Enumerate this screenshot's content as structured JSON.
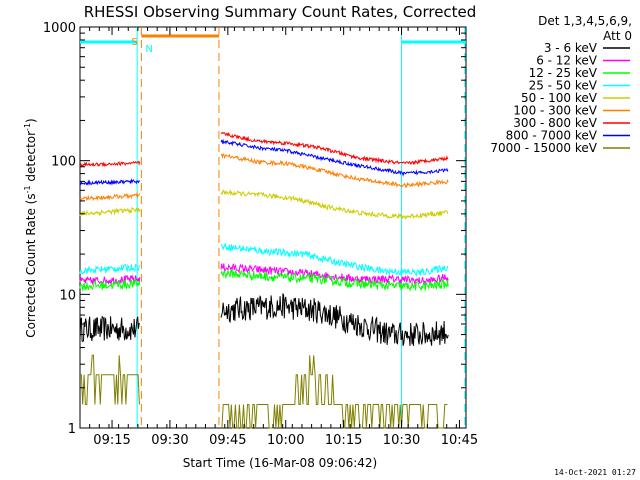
{
  "chart_data": {
    "type": "line",
    "title": "RHESSI Observing Summary Count Rates, Corrected",
    "xlabel": "Start Time (16-Mar-08 09:06:42)",
    "ylabel_main": "Corrected Count Rate (s",
    "ylabel_sup1": "-1",
    "ylabel_mid": " detector",
    "ylabel_sup2": "-1",
    "ylabel_end": ")",
    "x_range_min": [
      0,
      100
    ],
    "y_scale": "log",
    "ylim": [
      1,
      1000
    ],
    "x_ticks": [
      "09:15",
      "09:30",
      "09:45",
      "10:00",
      "10:15",
      "10:30",
      "10:45"
    ],
    "x_tick_values": [
      8.3,
      23.3,
      38.3,
      53.3,
      68.3,
      83.3,
      98.3
    ],
    "y_ticks": [
      "1",
      "10",
      "100",
      "1000"
    ],
    "y_tick_values": [
      1,
      10,
      100,
      1000
    ],
    "legend_header": [
      "Det 1,3,4,5,6,9,",
      "Att 0"
    ],
    "footer_date": "14-Oct-2021 01:27",
    "gaps_min": [
      [
        15.6,
        36.5
      ],
      [
        95.5,
        100
      ]
    ],
    "series": [
      {
        "name": "3 - 6 keV",
        "color": "#000000",
        "pts": [
          [
            0,
            5.5
          ],
          [
            15.5,
            5.5
          ],
          [
            36.5,
            7.6
          ],
          [
            52,
            8.2
          ],
          [
            62,
            7.5
          ],
          [
            72,
            6.0
          ],
          [
            80,
            5.0
          ],
          [
            90,
            5.0
          ],
          [
            95.5,
            5.3
          ]
        ],
        "noise": 0.22
      },
      {
        "name": "6 - 12 keV",
        "color": "#ff00ff",
        "pts": [
          [
            0,
            12.5
          ],
          [
            15.5,
            13
          ],
          [
            36.5,
            16
          ],
          [
            50,
            15
          ],
          [
            62,
            14
          ],
          [
            72,
            13
          ],
          [
            82,
            13
          ],
          [
            90,
            12.5
          ],
          [
            95.5,
            13.5
          ]
        ],
        "noise": 0.07
      },
      {
        "name": "12 - 25 keV",
        "color": "#00ff00",
        "pts": [
          [
            0,
            11.5
          ],
          [
            15.5,
            12
          ],
          [
            36.5,
            14.5
          ],
          [
            50,
            13.5
          ],
          [
            62,
            13
          ],
          [
            72,
            12
          ],
          [
            82,
            11.5
          ],
          [
            90,
            11.5
          ],
          [
            95.5,
            12
          ]
        ],
        "noise": 0.08
      },
      {
        "name": "25 - 50 keV",
        "color": "#00ffff",
        "pts": [
          [
            0,
            15
          ],
          [
            15.5,
            16
          ],
          [
            36.5,
            23
          ],
          [
            48,
            21
          ],
          [
            58,
            20
          ],
          [
            68,
            17
          ],
          [
            78,
            15
          ],
          [
            88,
            14.5
          ],
          [
            95.5,
            16
          ]
        ],
        "noise": 0.06
      },
      {
        "name": "50 - 100 keV",
        "color": "#cccc00",
        "pts": [
          [
            0,
            40
          ],
          [
            15.5,
            43
          ],
          [
            36.5,
            58
          ],
          [
            48,
            55
          ],
          [
            56,
            52
          ],
          [
            64,
            45
          ],
          [
            74,
            40
          ],
          [
            84,
            38
          ],
          [
            95.5,
            41
          ]
        ],
        "noise": 0.04
      },
      {
        "name": "100 - 300 keV",
        "color": "#ff7f00",
        "pts": [
          [
            0,
            52
          ],
          [
            15.5,
            55
          ],
          [
            36.5,
            110
          ],
          [
            46,
            98
          ],
          [
            54,
            95
          ],
          [
            62,
            85
          ],
          [
            72,
            73
          ],
          [
            84,
            65
          ],
          [
            95.5,
            70
          ]
        ],
        "noise": 0.035
      },
      {
        "name": "300 - 800 keV",
        "color": "#ff0000",
        "pts": [
          [
            0,
            93
          ],
          [
            15.5,
            96
          ],
          [
            36.5,
            160
          ],
          [
            46,
            140
          ],
          [
            54,
            135
          ],
          [
            62,
            125
          ],
          [
            72,
            105
          ],
          [
            84,
            95
          ],
          [
            95.5,
            105
          ]
        ],
        "noise": 0.03
      },
      {
        "name": "800 - 7000 keV",
        "color": "#0000ff",
        "pts": [
          [
            0,
            68
          ],
          [
            15.5,
            70
          ],
          [
            36.5,
            140
          ],
          [
            46,
            125
          ],
          [
            54,
            118
          ],
          [
            62,
            105
          ],
          [
            72,
            92
          ],
          [
            84,
            80
          ],
          [
            95.5,
            85
          ]
        ],
        "noise": 0.03
      },
      {
        "name": "7000 - 15000 keV",
        "color": "#808000",
        "pts": [
          [
            0,
            2.3
          ],
          [
            15.5,
            2.3
          ],
          [
            36.5,
            1.3
          ],
          [
            52,
            1.3
          ],
          [
            60,
            2.5
          ],
          [
            66,
            1.5
          ],
          [
            76,
            1.4
          ],
          [
            86,
            1.4
          ],
          [
            95.5,
            1.4
          ]
        ],
        "noise": 0.3,
        "quantized": true
      }
    ],
    "annotations": {
      "saa_label": "S",
      "night_label": "N",
      "saa_min": [
        15.9,
        36.0
      ],
      "night_min": [
        0,
        14.8
      ],
      "night_min_2": [
        83.3,
        100
      ]
    }
  }
}
